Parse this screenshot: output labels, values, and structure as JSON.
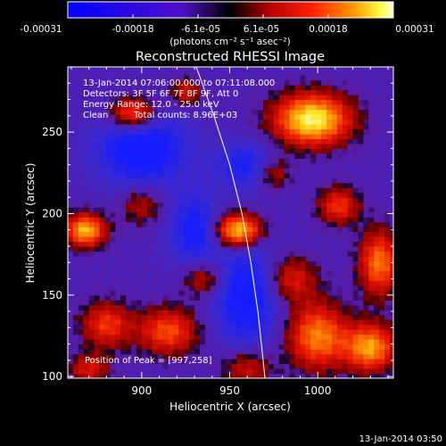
{
  "chart_data": {
    "type": "heatmap",
    "title": "Reconstructed RHESSI Image",
    "xlabel": "Heliocentric X (arcsec)",
    "ylabel": "Heliocentric Y (arcsec)",
    "xlim": [
      858,
      1043
    ],
    "ylim": [
      99,
      290
    ],
    "x_ticks": [
      900,
      950,
      1000
    ],
    "y_ticks": [
      100,
      150,
      200,
      250
    ],
    "colorbar": {
      "range": [
        -0.00031,
        0.00031
      ],
      "ticks": [
        "-0.00031",
        "-0.00018",
        "-6.1e-05",
        "6.1e-05",
        "0.00018",
        "0.00031"
      ],
      "unit_label": "(photons cm⁻² s⁻¹ asec⁻²)"
    },
    "info": {
      "time_range": "13-Jan-2014 07:06:00.000 to 07:11:08.000",
      "detectors": "Detectors: 3F 5F 6F 7F 8F 9F, Att 0",
      "energy_range": "Energy Range: 12.0 - 25.0 keV",
      "method": "Clean",
      "total_counts": "Total counts: 8.96E+03"
    },
    "peak_label": "Position of Peak = [997,258]",
    "peak": {
      "x": 997,
      "y": 258
    },
    "sources": [
      {
        "x": 997,
        "y": 258,
        "peak": 0.00031,
        "sx": 15,
        "sy": 11
      },
      {
        "x": 955,
        "y": 190,
        "peak": 0.00028,
        "sx": 9,
        "sy": 7
      },
      {
        "x": 868,
        "y": 190,
        "peak": 0.00026,
        "sx": 8,
        "sy": 7
      },
      {
        "x": 895,
        "y": 262,
        "peak": 0.0002,
        "sx": 9,
        "sy": 7
      },
      {
        "x": 915,
        "y": 128,
        "peak": 0.00018,
        "sx": 12,
        "sy": 10
      },
      {
        "x": 880,
        "y": 132,
        "peak": 0.00016,
        "sx": 10,
        "sy": 10
      },
      {
        "x": 1030,
        "y": 118,
        "peak": 0.00024,
        "sx": 10,
        "sy": 10
      },
      {
        "x": 1000,
        "y": 125,
        "peak": 0.00022,
        "sx": 12,
        "sy": 14
      },
      {
        "x": 1035,
        "y": 170,
        "peak": 0.00021,
        "sx": 8,
        "sy": 14
      },
      {
        "x": 1012,
        "y": 205,
        "peak": 0.00016,
        "sx": 8,
        "sy": 8
      },
      {
        "x": 985,
        "y": 160,
        "peak": 0.00014,
        "sx": 10,
        "sy": 10
      },
      {
        "x": 935,
        "y": 160,
        "peak": 0.00012,
        "sx": 8,
        "sy": 8
      },
      {
        "x": 925,
        "y": 275,
        "peak": 0.00012,
        "sx": 6,
        "sy": 6
      },
      {
        "x": 975,
        "y": 225,
        "peak": 0.00011,
        "sx": 7,
        "sy": 7
      },
      {
        "x": 900,
        "y": 205,
        "peak": 0.0001,
        "sx": 8,
        "sy": 8
      },
      {
        "x": 960,
        "y": 105,
        "peak": 0.00012,
        "sx": 10,
        "sy": 8
      },
      {
        "x": 870,
        "y": 105,
        "peak": 0.00013,
        "sx": 8,
        "sy": 6
      }
    ],
    "negative_regions": [
      {
        "x": 900,
        "y": 240,
        "depth": 0.00014,
        "sx": 18,
        "sy": 16
      },
      {
        "x": 960,
        "y": 150,
        "depth": 0.00013,
        "sx": 14,
        "sy": 22
      },
      {
        "x": 930,
        "y": 190,
        "depth": 0.00011,
        "sx": 10,
        "sy": 16
      },
      {
        "x": 960,
        "y": 230,
        "depth": 0.0001,
        "sx": 12,
        "sy": 10
      }
    ],
    "limb": [
      [
        931,
        290
      ],
      [
        941,
        260
      ],
      [
        950,
        230
      ],
      [
        957,
        200
      ],
      [
        962,
        170
      ],
      [
        966,
        140
      ],
      [
        969,
        110
      ],
      [
        970,
        99
      ]
    ],
    "timestamp": "13-Jan-2014 03:50"
  }
}
